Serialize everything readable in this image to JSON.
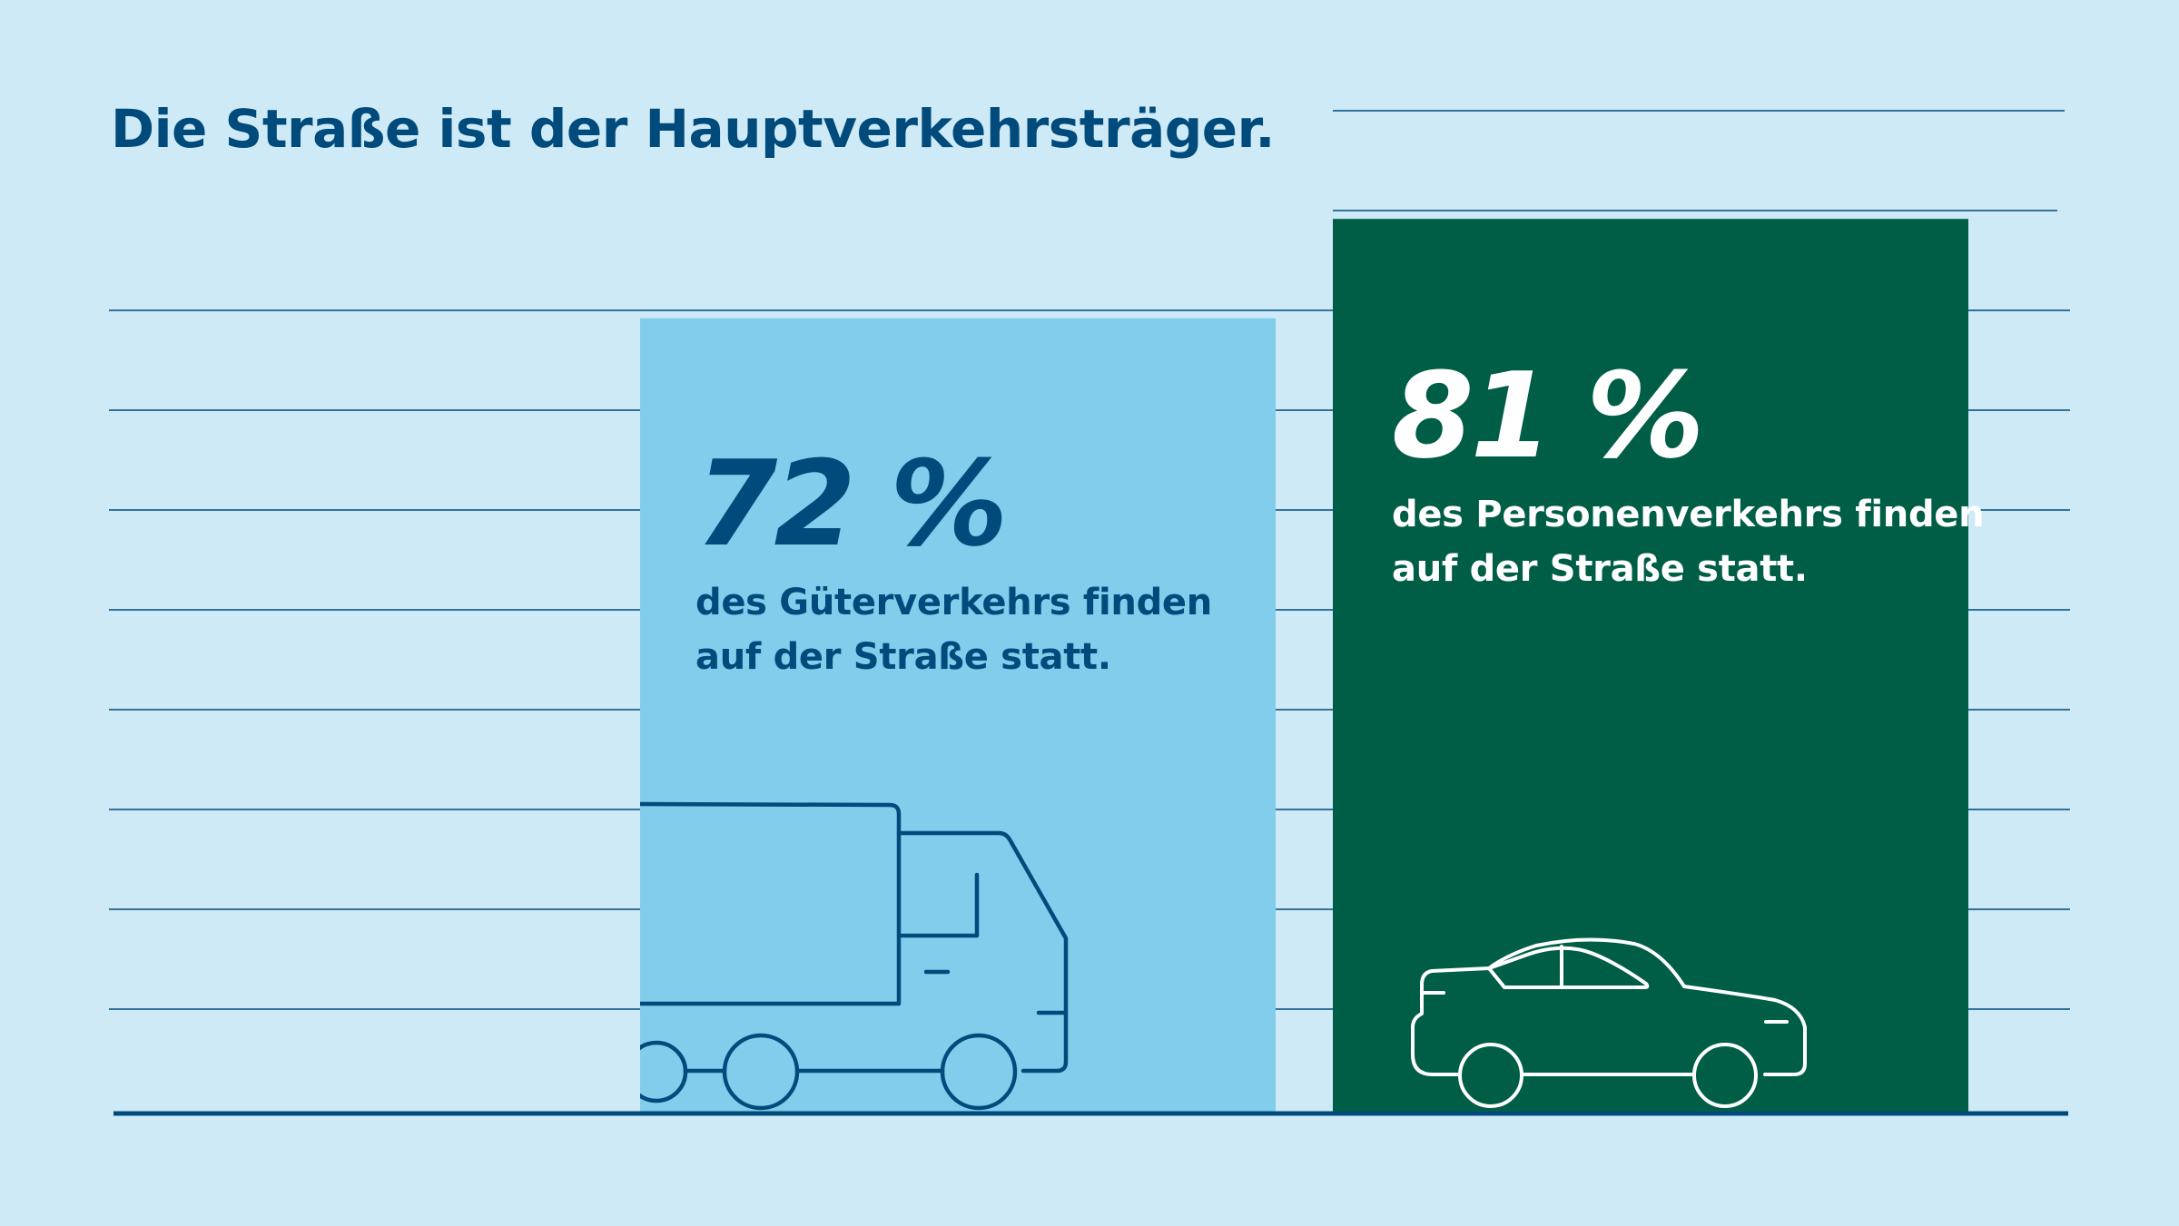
{
  "title": "Die Straße ist der Hauptverkehrsträger.",
  "colors": {
    "background": "#cdeaf6",
    "gridline": "#004b7c",
    "freight_bar": "#82cdec",
    "passenger_bar": "#005e46",
    "freight_text": "#004b7c",
    "passenger_text": "#ffffff"
  },
  "chart_data": {
    "type": "bar",
    "title": "Die Straße ist der Hauptverkehrsträger.",
    "categories": [
      "Güterverkehr",
      "Personenverkehr"
    ],
    "values": [
      72,
      81
    ],
    "unit": "%",
    "ylim": [
      0,
      100
    ],
    "grid": true,
    "bars": [
      {
        "value": 72,
        "value_label": "72 %",
        "text_line1": "des Güterverkehrs finden",
        "text_line2": "auf der Straße statt.",
        "icon": "truck-icon",
        "color": "#82cdec"
      },
      {
        "value": 81,
        "value_label": "81 %",
        "text_line1": "des Personenverkehrs finden",
        "text_line2": "auf der Straße statt.",
        "icon": "car-icon",
        "color": "#005e46"
      }
    ]
  }
}
